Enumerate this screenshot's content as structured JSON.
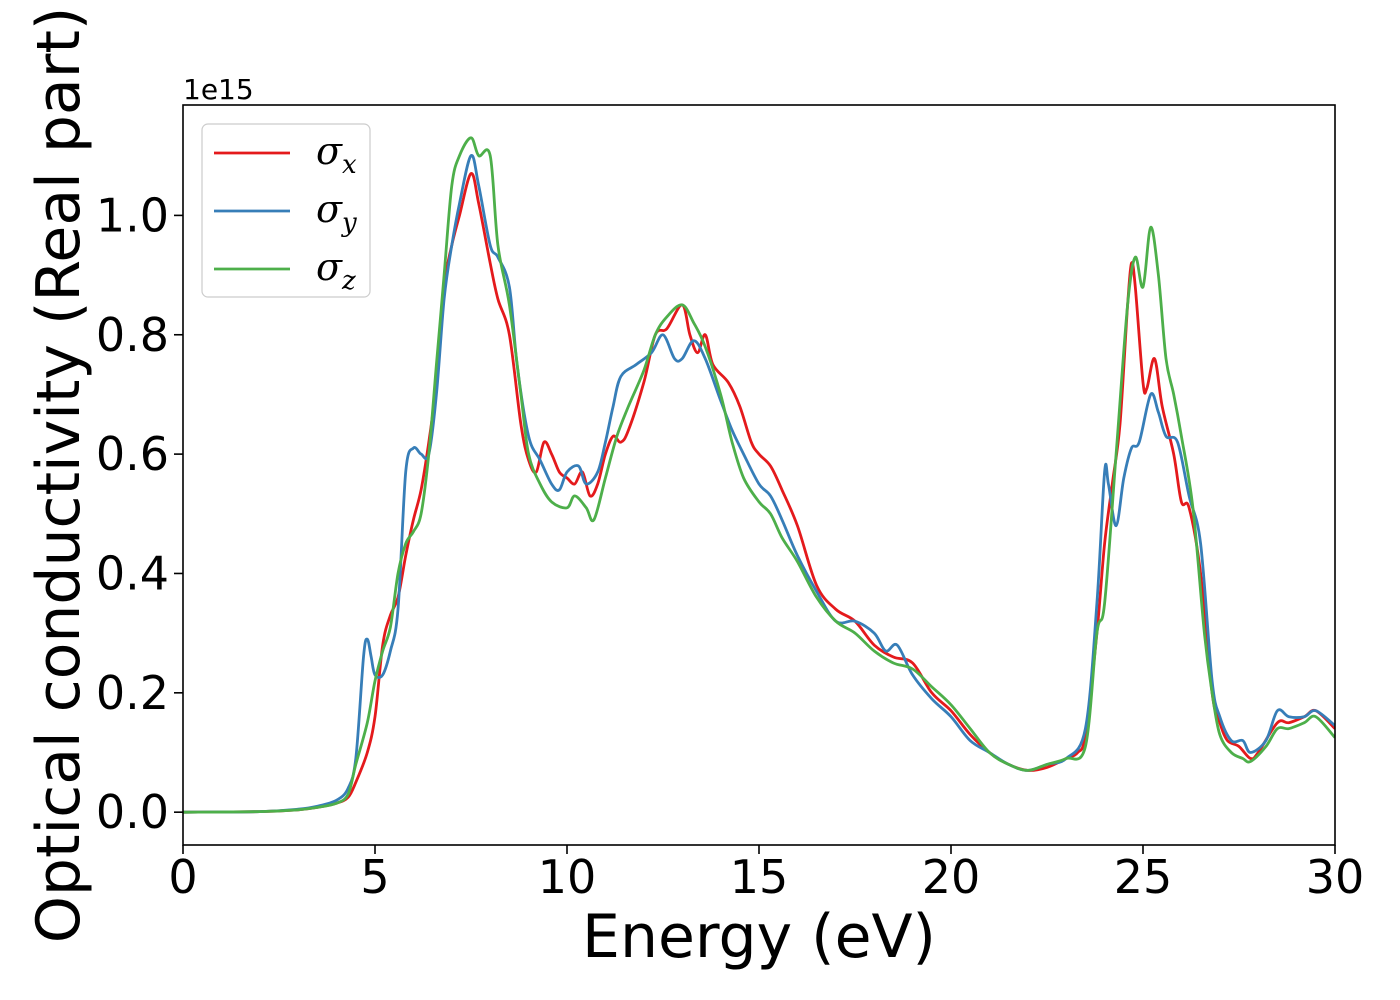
{
  "chart_data": {
    "type": "line",
    "xlabel": "Energy (eV)",
    "ylabel": "Optical conductivity (Real part)",
    "y_offset_label": "1e15",
    "xlim": [
      0,
      30
    ],
    "ylim": [
      -0.055,
      1.185
    ],
    "x_ticks": [
      0,
      5,
      10,
      15,
      20,
      25,
      30
    ],
    "y_ticks": [
      0.0,
      0.2,
      0.4,
      0.6,
      0.8,
      1.0
    ],
    "x_tick_labels": [
      "0",
      "5",
      "10",
      "15",
      "20",
      "25",
      "30"
    ],
    "y_tick_labels": [
      "0.0",
      "0.2",
      "0.4",
      "0.6",
      "0.8",
      "1.0"
    ],
    "grid": false,
    "legend_position": "top-left",
    "series": [
      {
        "name": "σx",
        "base": "σ",
        "sub": "x",
        "color": "#e41a1c",
        "points": [
          [
            0,
            0
          ],
          [
            2,
            0.001
          ],
          [
            3,
            0.004
          ],
          [
            3.5,
            0.008
          ],
          [
            4,
            0.015
          ],
          [
            4.3,
            0.025
          ],
          [
            4.5,
            0.05
          ],
          [
            4.8,
            0.1
          ],
          [
            5,
            0.16
          ],
          [
            5.2,
            0.28
          ],
          [
            5.4,
            0.33
          ],
          [
            5.6,
            0.36
          ],
          [
            5.8,
            0.43
          ],
          [
            6,
            0.49
          ],
          [
            6.2,
            0.54
          ],
          [
            6.4,
            0.62
          ],
          [
            6.6,
            0.72
          ],
          [
            6.8,
            0.88
          ],
          [
            7,
            0.95
          ],
          [
            7.2,
            1.0
          ],
          [
            7.5,
            1.07
          ],
          [
            7.7,
            1.02
          ],
          [
            8,
            0.92
          ],
          [
            8.2,
            0.86
          ],
          [
            8.5,
            0.8
          ],
          [
            8.8,
            0.65
          ],
          [
            9,
            0.59
          ],
          [
            9.2,
            0.57
          ],
          [
            9.4,
            0.62
          ],
          [
            9.6,
            0.6
          ],
          [
            9.8,
            0.57
          ],
          [
            10,
            0.56
          ],
          [
            10.2,
            0.55
          ],
          [
            10.4,
            0.57
          ],
          [
            10.6,
            0.53
          ],
          [
            10.8,
            0.55
          ],
          [
            11,
            0.6
          ],
          [
            11.2,
            0.63
          ],
          [
            11.4,
            0.62
          ],
          [
            11.6,
            0.64
          ],
          [
            12,
            0.72
          ],
          [
            12.3,
            0.8
          ],
          [
            12.6,
            0.81
          ],
          [
            13,
            0.85
          ],
          [
            13.2,
            0.8
          ],
          [
            13.4,
            0.77
          ],
          [
            13.6,
            0.8
          ],
          [
            13.8,
            0.75
          ],
          [
            14.2,
            0.72
          ],
          [
            14.5,
            0.68
          ],
          [
            14.8,
            0.62
          ],
          [
            15,
            0.6
          ],
          [
            15.3,
            0.58
          ],
          [
            15.6,
            0.54
          ],
          [
            16,
            0.48
          ],
          [
            16.5,
            0.38
          ],
          [
            17,
            0.34
          ],
          [
            17.5,
            0.32
          ],
          [
            18,
            0.28
          ],
          [
            18.5,
            0.26
          ],
          [
            19,
            0.25
          ],
          [
            19.5,
            0.2
          ],
          [
            20,
            0.17
          ],
          [
            20.5,
            0.13
          ],
          [
            21,
            0.1
          ],
          [
            21.5,
            0.08
          ],
          [
            22,
            0.07
          ],
          [
            22.5,
            0.075
          ],
          [
            23,
            0.09
          ],
          [
            23.3,
            0.1
          ],
          [
            23.5,
            0.13
          ],
          [
            23.8,
            0.3
          ],
          [
            24,
            0.45
          ],
          [
            24.2,
            0.55
          ],
          [
            24.4,
            0.65
          ],
          [
            24.6,
            0.85
          ],
          [
            24.7,
            0.92
          ],
          [
            24.8,
            0.88
          ],
          [
            25,
            0.72
          ],
          [
            25.1,
            0.71
          ],
          [
            25.3,
            0.76
          ],
          [
            25.5,
            0.68
          ],
          [
            25.8,
            0.6
          ],
          [
            26,
            0.52
          ],
          [
            26.2,
            0.51
          ],
          [
            26.5,
            0.4
          ],
          [
            26.8,
            0.2
          ],
          [
            27,
            0.15
          ],
          [
            27.2,
            0.12
          ],
          [
            27.5,
            0.11
          ],
          [
            27.8,
            0.09
          ],
          [
            28,
            0.1
          ],
          [
            28.5,
            0.15
          ],
          [
            28.8,
            0.15
          ],
          [
            29.2,
            0.16
          ],
          [
            29.5,
            0.17
          ],
          [
            30,
            0.14
          ]
        ]
      },
      {
        "name": "σy",
        "base": "σ",
        "sub": "y",
        "color": "#377eb8",
        "points": [
          [
            0,
            0
          ],
          [
            2,
            0.001
          ],
          [
            3,
            0.005
          ],
          [
            3.5,
            0.01
          ],
          [
            4,
            0.02
          ],
          [
            4.3,
            0.04
          ],
          [
            4.5,
            0.09
          ],
          [
            4.7,
            0.26
          ],
          [
            4.8,
            0.29
          ],
          [
            4.9,
            0.26
          ],
          [
            5,
            0.23
          ],
          [
            5.2,
            0.23
          ],
          [
            5.4,
            0.27
          ],
          [
            5.6,
            0.34
          ],
          [
            5.8,
            0.57
          ],
          [
            6,
            0.61
          ],
          [
            6.2,
            0.6
          ],
          [
            6.4,
            0.6
          ],
          [
            6.6,
            0.7
          ],
          [
            6.8,
            0.86
          ],
          [
            7,
            0.95
          ],
          [
            7.2,
            1.02
          ],
          [
            7.5,
            1.1
          ],
          [
            7.7,
            1.05
          ],
          [
            8,
            0.95
          ],
          [
            8.2,
            0.93
          ],
          [
            8.5,
            0.88
          ],
          [
            8.7,
            0.75
          ],
          [
            9,
            0.63
          ],
          [
            9.3,
            0.59
          ],
          [
            9.6,
            0.55
          ],
          [
            9.8,
            0.54
          ],
          [
            10,
            0.57
          ],
          [
            10.3,
            0.58
          ],
          [
            10.5,
            0.55
          ],
          [
            10.8,
            0.57
          ],
          [
            11,
            0.62
          ],
          [
            11.2,
            0.68
          ],
          [
            11.4,
            0.73
          ],
          [
            11.8,
            0.75
          ],
          [
            12.2,
            0.77
          ],
          [
            12.5,
            0.8
          ],
          [
            12.8,
            0.76
          ],
          [
            13,
            0.76
          ],
          [
            13.3,
            0.79
          ],
          [
            13.6,
            0.76
          ],
          [
            14,
            0.69
          ],
          [
            14.3,
            0.64
          ],
          [
            14.6,
            0.6
          ],
          [
            15,
            0.55
          ],
          [
            15.3,
            0.53
          ],
          [
            15.6,
            0.49
          ],
          [
            16,
            0.43
          ],
          [
            16.5,
            0.37
          ],
          [
            17,
            0.32
          ],
          [
            17.5,
            0.32
          ],
          [
            18,
            0.3
          ],
          [
            18.3,
            0.27
          ],
          [
            18.6,
            0.28
          ],
          [
            19,
            0.23
          ],
          [
            19.5,
            0.19
          ],
          [
            20,
            0.16
          ],
          [
            20.5,
            0.12
          ],
          [
            21,
            0.1
          ],
          [
            21.5,
            0.08
          ],
          [
            22,
            0.07
          ],
          [
            22.5,
            0.08
          ],
          [
            23,
            0.09
          ],
          [
            23.5,
            0.14
          ],
          [
            23.8,
            0.35
          ],
          [
            24,
            0.57
          ],
          [
            24.1,
            0.55
          ],
          [
            24.3,
            0.48
          ],
          [
            24.5,
            0.56
          ],
          [
            24.7,
            0.61
          ],
          [
            24.9,
            0.62
          ],
          [
            25.2,
            0.7
          ],
          [
            25.4,
            0.67
          ],
          [
            25.6,
            0.63
          ],
          [
            25.9,
            0.62
          ],
          [
            26.2,
            0.53
          ],
          [
            26.5,
            0.45
          ],
          [
            26.8,
            0.22
          ],
          [
            27,
            0.16
          ],
          [
            27.3,
            0.12
          ],
          [
            27.6,
            0.12
          ],
          [
            27.8,
            0.1
          ],
          [
            28.2,
            0.12
          ],
          [
            28.5,
            0.17
          ],
          [
            28.8,
            0.16
          ],
          [
            29.2,
            0.16
          ],
          [
            29.5,
            0.17
          ],
          [
            30,
            0.145
          ]
        ]
      },
      {
        "name": "σz",
        "base": "σ",
        "sub": "z",
        "color": "#4daf4a",
        "points": [
          [
            0,
            0
          ],
          [
            2,
            0.001
          ],
          [
            3,
            0.004
          ],
          [
            3.5,
            0.008
          ],
          [
            4,
            0.015
          ],
          [
            4.3,
            0.03
          ],
          [
            4.5,
            0.08
          ],
          [
            4.8,
            0.15
          ],
          [
            5,
            0.22
          ],
          [
            5.2,
            0.27
          ],
          [
            5.4,
            0.31
          ],
          [
            5.6,
            0.4
          ],
          [
            5.8,
            0.45
          ],
          [
            6,
            0.47
          ],
          [
            6.2,
            0.5
          ],
          [
            6.4,
            0.6
          ],
          [
            6.6,
            0.75
          ],
          [
            6.8,
            0.9
          ],
          [
            7,
            1.05
          ],
          [
            7.2,
            1.1
          ],
          [
            7.5,
            1.13
          ],
          [
            7.7,
            1.1
          ],
          [
            8,
            1.1
          ],
          [
            8.2,
            0.95
          ],
          [
            8.5,
            0.85
          ],
          [
            8.8,
            0.7
          ],
          [
            9,
            0.6
          ],
          [
            9.3,
            0.55
          ],
          [
            9.6,
            0.52
          ],
          [
            10,
            0.51
          ],
          [
            10.2,
            0.53
          ],
          [
            10.5,
            0.51
          ],
          [
            10.7,
            0.49
          ],
          [
            11,
            0.56
          ],
          [
            11.3,
            0.63
          ],
          [
            11.6,
            0.68
          ],
          [
            12,
            0.74
          ],
          [
            12.3,
            0.8
          ],
          [
            12.6,
            0.83
          ],
          [
            13,
            0.85
          ],
          [
            13.3,
            0.82
          ],
          [
            13.6,
            0.78
          ],
          [
            14,
            0.7
          ],
          [
            14.3,
            0.62
          ],
          [
            14.6,
            0.56
          ],
          [
            15,
            0.52
          ],
          [
            15.3,
            0.5
          ],
          [
            15.6,
            0.46
          ],
          [
            16,
            0.42
          ],
          [
            16.5,
            0.36
          ],
          [
            17,
            0.32
          ],
          [
            17.5,
            0.3
          ],
          [
            18,
            0.27
          ],
          [
            18.5,
            0.25
          ],
          [
            19,
            0.24
          ],
          [
            19.5,
            0.21
          ],
          [
            20,
            0.18
          ],
          [
            20.5,
            0.14
          ],
          [
            21,
            0.1
          ],
          [
            21.5,
            0.08
          ],
          [
            22,
            0.07
          ],
          [
            22.5,
            0.08
          ],
          [
            23,
            0.09
          ],
          [
            23.5,
            0.11
          ],
          [
            23.8,
            0.3
          ],
          [
            24,
            0.35
          ],
          [
            24.3,
            0.6
          ],
          [
            24.6,
            0.85
          ],
          [
            24.8,
            0.93
          ],
          [
            25,
            0.88
          ],
          [
            25.2,
            0.98
          ],
          [
            25.4,
            0.9
          ],
          [
            25.6,
            0.76
          ],
          [
            25.8,
            0.7
          ],
          [
            26,
            0.63
          ],
          [
            26.3,
            0.51
          ],
          [
            26.6,
            0.3
          ],
          [
            26.8,
            0.2
          ],
          [
            27,
            0.13
          ],
          [
            27.3,
            0.1
          ],
          [
            27.6,
            0.09
          ],
          [
            27.8,
            0.085
          ],
          [
            28.2,
            0.11
          ],
          [
            28.5,
            0.14
          ],
          [
            28.8,
            0.14
          ],
          [
            29.2,
            0.15
          ],
          [
            29.5,
            0.16
          ],
          [
            30,
            0.125
          ]
        ]
      }
    ]
  }
}
